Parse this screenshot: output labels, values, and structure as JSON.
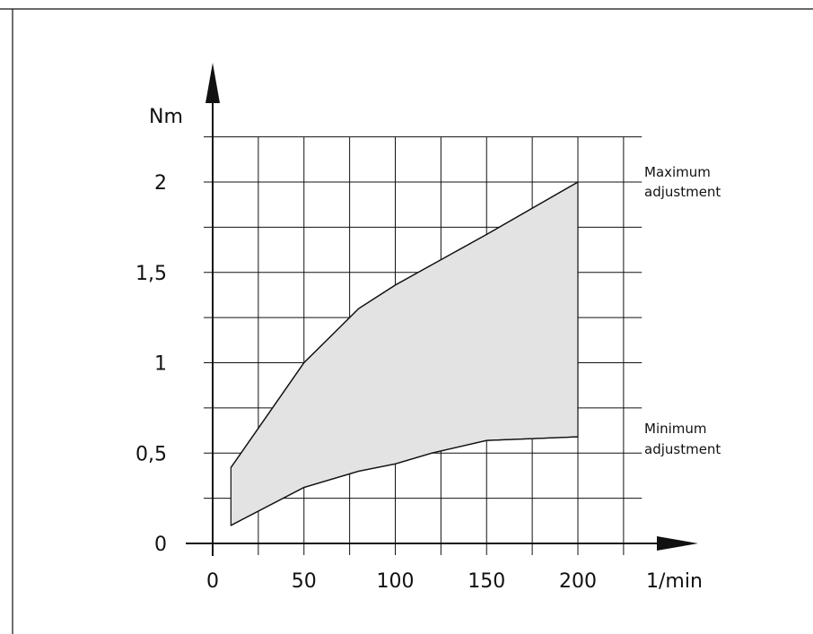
{
  "chart_data": {
    "type": "area",
    "xlabel": "1/min",
    "ylabel": "Nm",
    "xlim": [
      0,
      240
    ],
    "ylim": [
      0,
      2.25
    ],
    "x_ticks": [
      0,
      50,
      100,
      150,
      200
    ],
    "x_tick_labels": [
      "0",
      "50",
      "100",
      "150",
      "200"
    ],
    "y_ticks": [
      0,
      0.5,
      1,
      1.5,
      2
    ],
    "y_tick_labels": [
      "0",
      "0,5",
      "1",
      "1,5",
      "2"
    ],
    "grid": true,
    "series": [
      {
        "name": "Maximum adjustment",
        "x": [
          10,
          50,
          80,
          100,
          150,
          200
        ],
        "y": [
          0.42,
          1.0,
          1.3,
          1.43,
          1.71,
          2.0
        ]
      },
      {
        "name": "Minimum adjustment",
        "x": [
          10,
          50,
          80,
          100,
          120,
          150,
          200
        ],
        "y": [
          0.1,
          0.31,
          0.4,
          0.44,
          0.5,
          0.57,
          0.59
        ]
      }
    ],
    "annotations": {
      "max_line1": "Maximum",
      "max_line2": "adjustment",
      "min_line1": "Minimum",
      "min_line2": "adjustment"
    },
    "colors": {
      "band_fill": "#e3e3e3",
      "line": "#111111"
    }
  }
}
